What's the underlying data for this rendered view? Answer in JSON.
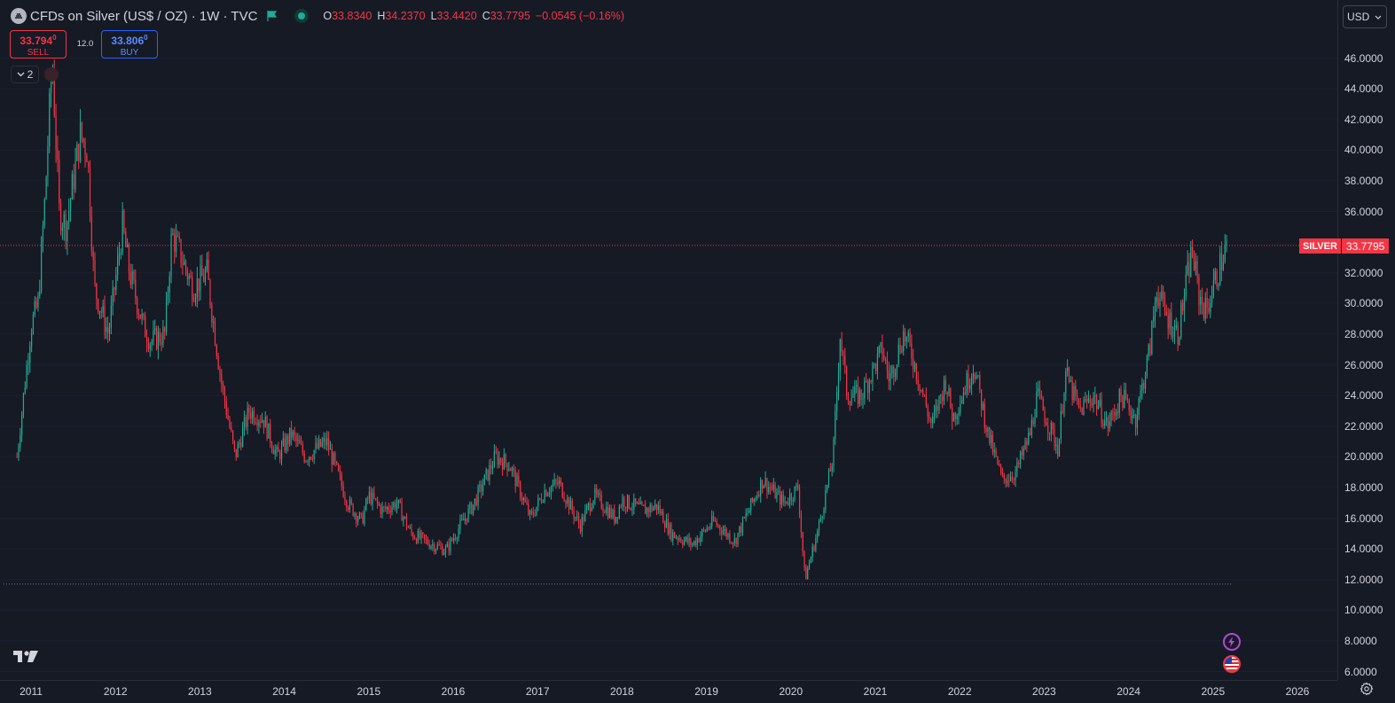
{
  "header": {
    "symbol_title": "CFDs on Silver (US$ / OZ) · 1W · TVC",
    "ohlc": [
      {
        "key": "O",
        "value": "33.8340"
      },
      {
        "key": "H",
        "value": "34.2370"
      },
      {
        "key": "L",
        "value": "33.4420"
      },
      {
        "key": "C",
        "value": "33.7795"
      }
    ],
    "change": "−0.0545 (−0.16%)"
  },
  "trade": {
    "sell_price": "33.794",
    "sell_sup": "0",
    "sell_label": "SELL",
    "spread": "12.0",
    "buy_price": "33.806",
    "buy_sup": "0",
    "buy_label": "BUY"
  },
  "indicators_toggle": {
    "count": "2"
  },
  "currency": "USD",
  "last_price": {
    "symbol": "SILVER",
    "value": "33.7795"
  },
  "colors": {
    "up": "#22ab94",
    "down": "#f23645",
    "background": "#161a25",
    "grid": "#2a2e39",
    "text": "#d1d4dc"
  },
  "y_ticks": [
    "46.0000",
    "44.0000",
    "42.0000",
    "40.0000",
    "38.0000",
    "36.0000",
    "32.0000",
    "30.0000",
    "28.0000",
    "26.0000",
    "24.0000",
    "22.0000",
    "20.0000",
    "18.0000",
    "16.0000",
    "14.0000",
    "12.0000",
    "10.0000",
    "8.0000",
    "6.0000"
  ],
  "x_ticks": [
    "2011",
    "2012",
    "2013",
    "2014",
    "2015",
    "2016",
    "2017",
    "2018",
    "2019",
    "2020",
    "2021",
    "2022",
    "2023",
    "2024",
    "2025",
    "2026"
  ],
  "icons": [
    "symbol-logo-icon",
    "flag-icon",
    "market-status-icon",
    "chevron-down-icon",
    "tradingview-logo-icon",
    "lightning-icon",
    "us-flag-icon",
    "settings-icon"
  ],
  "chart_data": {
    "type": "candlestick",
    "interval": "1W",
    "ylim": [
      6,
      47
    ],
    "xlim": [
      "2010-10",
      "2026-04"
    ],
    "last_price_line": 33.7795,
    "low_marker_line": 11.7,
    "price_path": [
      [
        "2010-11",
        20.0
      ],
      [
        "2011-01",
        28.5
      ],
      [
        "2011-02",
        30.0
      ],
      [
        "2011-03",
        37.0
      ],
      [
        "2011-04",
        46.0
      ],
      [
        "2011-05",
        36.0
      ],
      [
        "2011-06",
        35.0
      ],
      [
        "2011-08",
        41.0
      ],
      [
        "2011-09",
        40.0
      ],
      [
        "2011-10",
        31.0
      ],
      [
        "2011-12",
        28.0
      ],
      [
        "2012-02",
        35.0
      ],
      [
        "2012-03",
        32.0
      ],
      [
        "2012-05",
        28.5
      ],
      [
        "2012-06",
        27.5
      ],
      [
        "2012-08",
        28.0
      ],
      [
        "2012-09",
        34.5
      ],
      [
        "2012-10",
        33.5
      ],
      [
        "2012-12",
        31.0
      ],
      [
        "2013-02",
        32.0
      ],
      [
        "2013-04",
        25.0
      ],
      [
        "2013-06",
        20.0
      ],
      [
        "2013-08",
        23.0
      ],
      [
        "2013-10",
        22.5
      ],
      [
        "2013-12",
        20.0
      ],
      [
        "2014-02",
        21.5
      ],
      [
        "2014-04",
        20.0
      ],
      [
        "2014-07",
        21.0
      ],
      [
        "2014-10",
        17.0
      ],
      [
        "2014-12",
        15.8
      ],
      [
        "2015-01",
        17.5
      ],
      [
        "2015-03",
        16.5
      ],
      [
        "2015-05",
        17.0
      ],
      [
        "2015-07",
        15.0
      ],
      [
        "2015-09",
        14.5
      ],
      [
        "2015-12",
        13.9
      ],
      [
        "2016-02",
        15.5
      ],
      [
        "2016-04",
        17.0
      ],
      [
        "2016-07",
        20.0
      ],
      [
        "2016-09",
        19.5
      ],
      [
        "2016-12",
        16.0
      ],
      [
        "2017-02",
        17.8
      ],
      [
        "2017-04",
        18.3
      ],
      [
        "2017-07",
        15.5
      ],
      [
        "2017-09",
        17.5
      ],
      [
        "2017-12",
        16.0
      ],
      [
        "2018-01",
        17.2
      ],
      [
        "2018-04",
        16.5
      ],
      [
        "2018-06",
        16.8
      ],
      [
        "2018-08",
        15.0
      ],
      [
        "2018-11",
        14.3
      ],
      [
        "2019-02",
        15.8
      ],
      [
        "2019-05",
        14.5
      ],
      [
        "2019-07",
        16.5
      ],
      [
        "2019-09",
        18.5
      ],
      [
        "2019-12",
        17.0
      ],
      [
        "2020-02",
        18.0
      ],
      [
        "2020-03",
        12.0
      ],
      [
        "2020-05",
        15.5
      ],
      [
        "2020-07",
        20.0
      ],
      [
        "2020-08",
        28.0
      ],
      [
        "2020-09",
        24.0
      ],
      [
        "2020-11",
        24.0
      ],
      [
        "2021-02",
        27.0
      ],
      [
        "2021-03",
        25.0
      ],
      [
        "2021-05",
        28.0
      ],
      [
        "2021-06",
        27.0
      ],
      [
        "2021-09",
        22.0
      ],
      [
        "2021-11",
        25.0
      ],
      [
        "2021-12",
        22.5
      ],
      [
        "2022-03",
        26.0
      ],
      [
        "2022-05",
        21.5
      ],
      [
        "2022-07",
        18.5
      ],
      [
        "2022-09",
        19.0
      ],
      [
        "2022-11",
        21.5
      ],
      [
        "2022-12",
        24.0
      ],
      [
        "2023-03",
        20.5
      ],
      [
        "2023-04",
        25.5
      ],
      [
        "2023-06",
        23.0
      ],
      [
        "2023-08",
        24.0
      ],
      [
        "2023-10",
        22.0
      ],
      [
        "2023-12",
        24.0
      ],
      [
        "2024-02",
        22.5
      ],
      [
        "2024-04",
        27.0
      ],
      [
        "2024-05",
        31.0
      ],
      [
        "2024-06",
        29.5
      ],
      [
        "2024-08",
        28.0
      ],
      [
        "2024-10",
        33.5
      ],
      [
        "2024-11",
        30.5
      ],
      [
        "2024-12",
        29.5
      ],
      [
        "2025-02",
        32.5
      ],
      [
        "2025-03",
        33.8
      ]
    ]
  }
}
